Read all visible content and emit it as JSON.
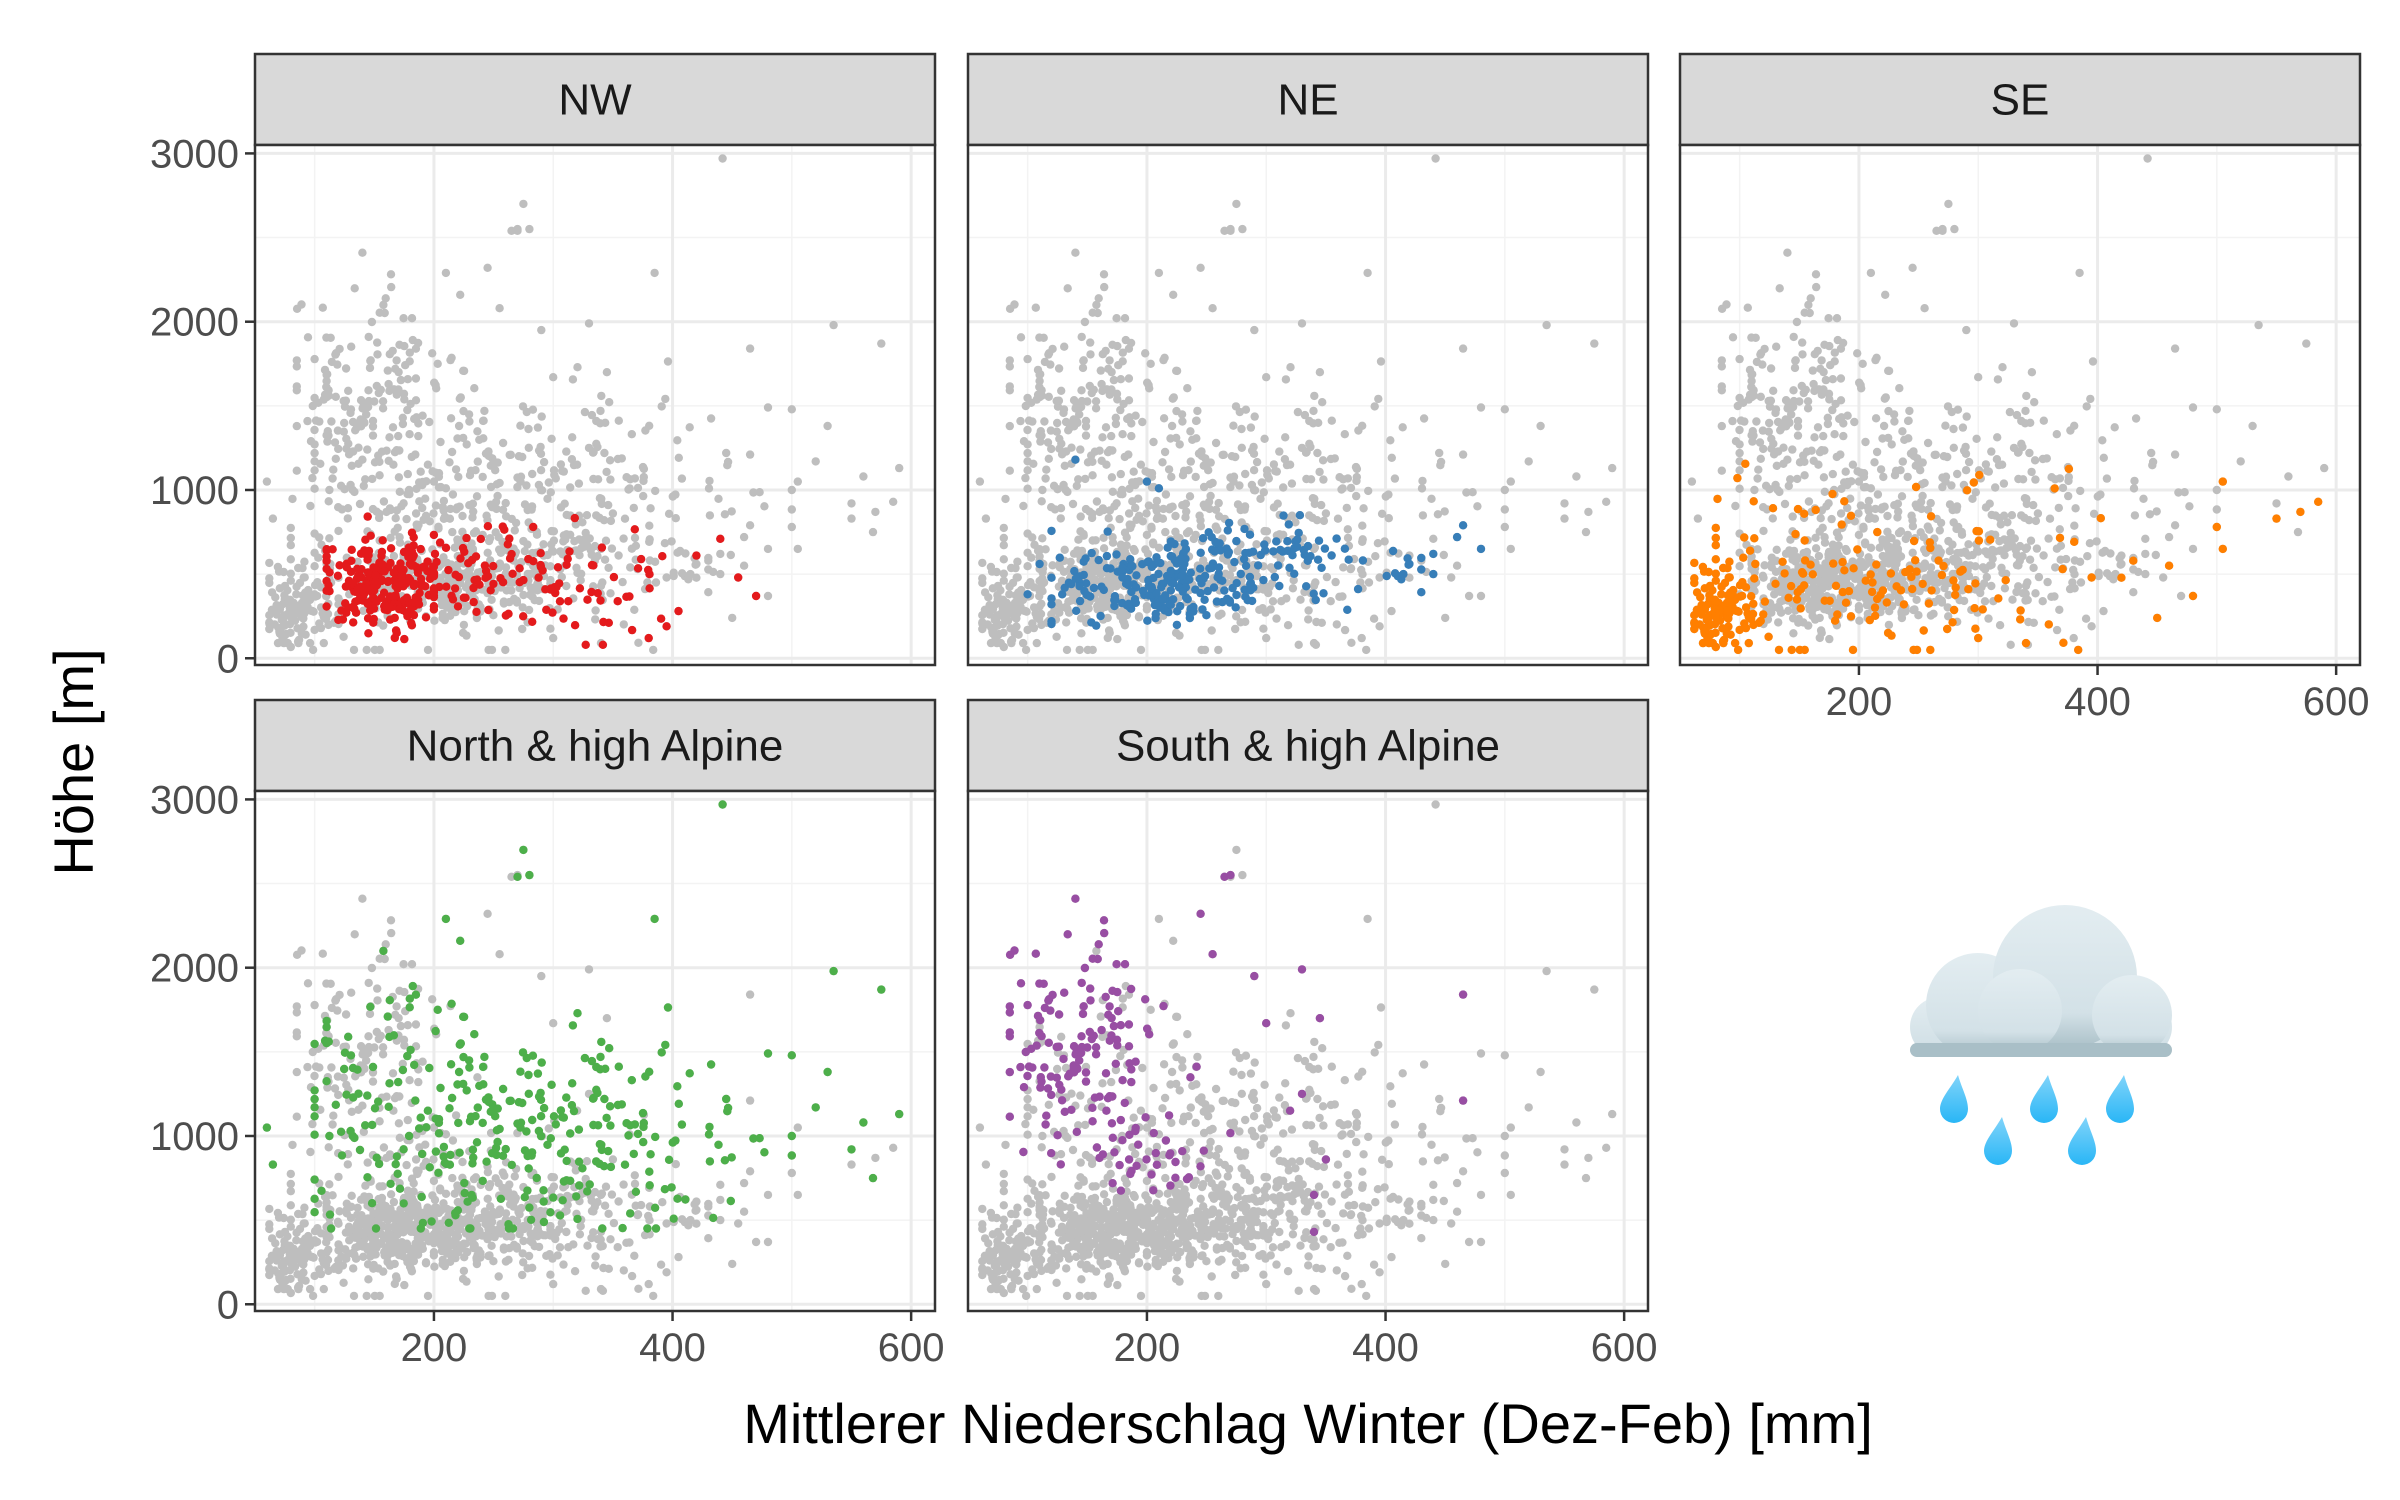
{
  "chart_data": {
    "type": "scatter",
    "xlabel": "Mittlerer Niederschlag Winter (Dez-Feb) [mm]",
    "ylabel": "Höhe [m]",
    "xlim": [
      50,
      620
    ],
    "ylim": [
      0,
      3050
    ],
    "x_ticks": [
      200,
      400,
      600
    ],
    "y_ticks": [
      0,
      1000,
      2000,
      3000
    ],
    "grid": true,
    "background_color": "#bebebe",
    "panels": [
      {
        "name": "NW",
        "color": "#e41a1c",
        "clusters": [
          {
            "n": 230,
            "cx": 160,
            "cy": 450,
            "sx": 28,
            "sy": 130,
            "xmin": 110,
            "xmax": 250,
            "ymin": 80,
            "ymax": 900
          },
          {
            "n": 110,
            "cx": 270,
            "cy": 470,
            "sx": 60,
            "sy": 160,
            "xmin": 200,
            "xmax": 420,
            "ymin": 80,
            "ymax": 1050
          }
        ],
        "points": [
          [
            395,
            190
          ],
          [
            405,
            280
          ],
          [
            455,
            480
          ],
          [
            470,
            370
          ],
          [
            380,
            120
          ],
          [
            420,
            610
          ],
          [
            440,
            710
          ]
        ]
      },
      {
        "name": "NE",
        "color": "#377eb8",
        "clusters": [
          {
            "n": 170,
            "cx": 200,
            "cy": 440,
            "sx": 38,
            "sy": 110,
            "xmin": 120,
            "xmax": 290,
            "ymin": 170,
            "ymax": 900
          },
          {
            "n": 110,
            "cx": 300,
            "cy": 560,
            "sx": 55,
            "sy": 130,
            "xmin": 220,
            "xmax": 430,
            "ymin": 280,
            "ymax": 850
          }
        ],
        "points": [
          [
            460,
            720
          ],
          [
            465,
            790
          ],
          [
            440,
            620
          ],
          [
            415,
            500
          ],
          [
            420,
            560
          ],
          [
            480,
            650
          ],
          [
            440,
            500
          ],
          [
            200,
            1050
          ],
          [
            210,
            1010
          ],
          [
            140,
            1180
          ],
          [
            110,
            560
          ],
          [
            100,
            380
          ]
        ]
      },
      {
        "name": "SE",
        "color": "#ff7f00",
        "clusters": [
          {
            "n": 120,
            "cx": 85,
            "cy": 270,
            "sx": 15,
            "sy": 110,
            "xmin": 62,
            "xmax": 125,
            "ymin": 90,
            "ymax": 700
          },
          {
            "n": 140,
            "cx": 210,
            "cy": 500,
            "sx": 75,
            "sy": 270,
            "xmin": 80,
            "xmax": 420,
            "ymin": 50,
            "ymax": 1250
          }
        ],
        "points": [
          [
            505,
            650
          ],
          [
            505,
            1050
          ],
          [
            585,
            930
          ],
          [
            500,
            780
          ],
          [
            480,
            370
          ],
          [
            460,
            550
          ],
          [
            450,
            240
          ],
          [
            430,
            580
          ],
          [
            395,
            480
          ],
          [
            340,
            90
          ],
          [
            300,
            120
          ],
          [
            570,
            870
          ],
          [
            550,
            830
          ]
        ]
      },
      {
        "name": "North & high Alpine",
        "color": "#4daf4a",
        "clusters": [
          {
            "n": 280,
            "cx": 285,
            "cy": 1000,
            "sx": 95,
            "sy": 310,
            "xmin": 100,
            "xmax": 500,
            "ymin": 450,
            "ymax": 2000
          },
          {
            "n": 40,
            "cx": 170,
            "cy": 1450,
            "sx": 45,
            "sy": 300,
            "xmin": 110,
            "xmax": 260,
            "ymin": 1000,
            "ymax": 2100
          }
        ],
        "points": [
          [
            442,
            2970
          ],
          [
            275,
            2700
          ],
          [
            270,
            2540
          ],
          [
            280,
            2550
          ],
          [
            385,
            2290
          ],
          [
            210,
            2290
          ],
          [
            222,
            2160
          ],
          [
            535,
            1980
          ],
          [
            575,
            1870
          ],
          [
            530,
            1380
          ],
          [
            560,
            1080
          ],
          [
            590,
            1130
          ],
          [
            568,
            750
          ],
          [
            550,
            920
          ],
          [
            520,
            1170
          ],
          [
            500,
            1000
          ],
          [
            480,
            1490
          ],
          [
            60,
            1050
          ],
          [
            65,
            830
          ]
        ]
      },
      {
        "name": "South & high Alpine",
        "color": "#984ea3",
        "clusters": [
          {
            "n": 140,
            "cx": 140,
            "cy": 1520,
            "sx": 38,
            "sy": 330,
            "xmin": 85,
            "xmax": 250,
            "ymin": 650,
            "ymax": 2300
          },
          {
            "n": 30,
            "cx": 210,
            "cy": 900,
            "sx": 30,
            "sy": 150,
            "xmin": 160,
            "xmax": 300,
            "ymin": 560,
            "ymax": 1200
          }
        ],
        "points": [
          [
            265,
            2540
          ],
          [
            270,
            2550
          ],
          [
            140,
            2410
          ],
          [
            255,
            2080
          ],
          [
            245,
            2320
          ],
          [
            290,
            1950
          ],
          [
            330,
            1990
          ],
          [
            330,
            1250
          ],
          [
            350,
            860
          ],
          [
            340,
            650
          ],
          [
            340,
            430
          ],
          [
            465,
            1840
          ],
          [
            465,
            1210
          ],
          [
            300,
            1670
          ],
          [
            345,
            1700
          ],
          [
            320,
            1150
          ]
        ]
      }
    ]
  },
  "legend_icon": "rain-cloud-icon"
}
